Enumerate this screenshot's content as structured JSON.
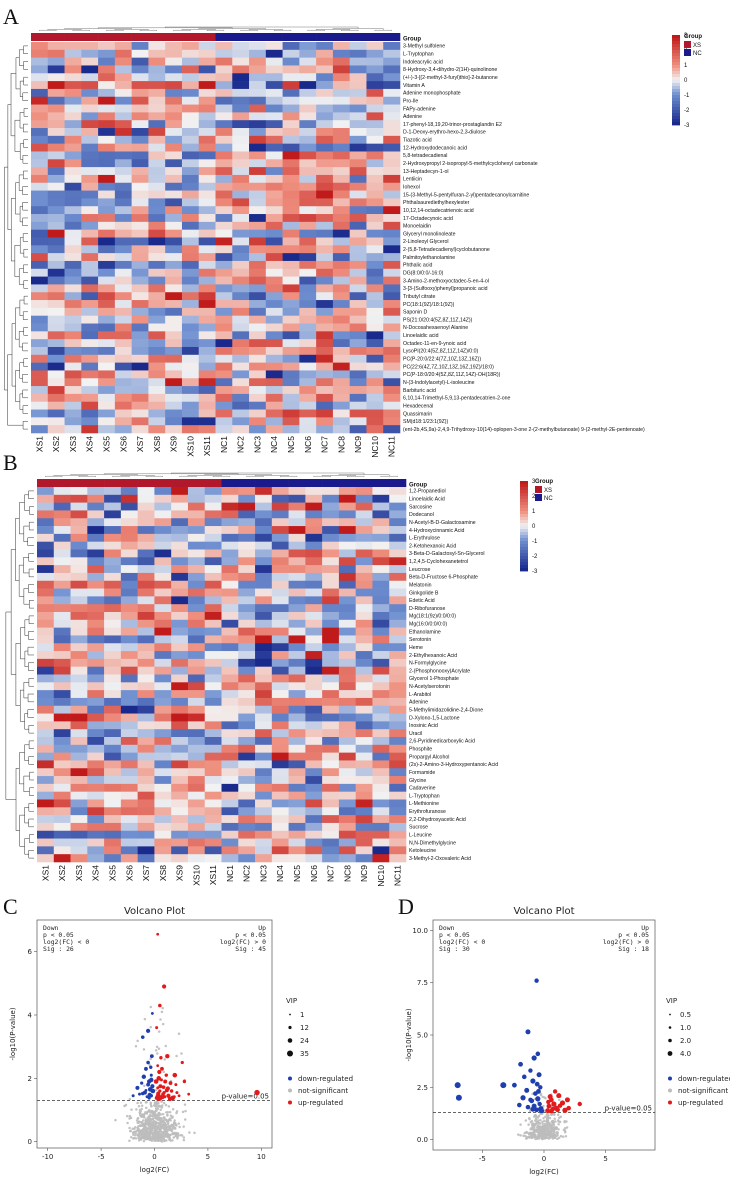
{
  "panels": {
    "a": "A",
    "b": "B",
    "c": "C",
    "d": "D"
  },
  "chart_data": [
    {
      "type": "heatmap",
      "panel": "A",
      "group_title": "Group",
      "groups": [
        {
          "name": "XS",
          "color": "#b2182b"
        },
        {
          "name": "NC",
          "color": "#1a1a8c"
        }
      ],
      "columns": [
        "XS1",
        "XS2",
        "XS3",
        "XS4",
        "XS5",
        "XS6",
        "XS7",
        "XS8",
        "XS9",
        "XS10",
        "XS11",
        "NC1",
        "NC2",
        "NC3",
        "NC4",
        "NC5",
        "NC6",
        "NC7",
        "NC8",
        "NC9",
        "NC10",
        "NC11"
      ],
      "rows": [
        "3-Methyl sulfolene",
        "L-Tryptophan",
        "Indoleacrylic acid",
        "8-Hydroxy-3,4-dihydro-2(1H)-quinolinone",
        "(+/-)-3-[(2-methyl-3-furyl)thio]-2-butanone",
        "Vitamin A",
        "Adenine monophosphate",
        "Pro-Ile",
        "FAPy-adenine",
        "Adenine",
        "17-phenyl-18,19,20-trinor-prostaglandin E2",
        "D-1-Deoxy-erythro-hexo-2,3-diulose",
        "Tiazotic acid",
        "12-Hydroxydodecanoic acid",
        "5,8-tetradecadienal",
        "2-Hydroxypropyl 2-isopropyl-5-methylcyclohexyl carbonate",
        "13-Heptadecyn-1-ol",
        "Lentiicin",
        "Iohexol",
        "15-(3-Methyl-5-pentylfuran-2-yl)pentadecanoylcarnitine",
        "Phthalsaurediethylhexylester",
        "10,12,14-octadecatrienoic acid",
        "17-Octadecynoic acid",
        "Monoelaidin",
        "Glyceryl monolinoleate",
        "2-Linoleoyl Glycerol",
        "2-(5,8-Tetradecadienyl)cyclobutanone",
        "Palmitoylethanolamine",
        "Phthalic acid",
        "DG(8:0/0:0/-16:0)",
        "3-Amino-2-methoxyoctadec-5-en-4-ol",
        "3-[3-(Sulfooxy)phenyl]propanoic acid",
        "Tributyl citrate",
        "PC(18:1(9Z)/18:1(9Z))",
        "Saponin D",
        "PS(21:0/20:4(5Z,8Z,11Z,14Z))",
        "N-Docosahexaenoyl Alanine",
        "Linoelaidic acid",
        "Octadec-11-en-9-ynoic acid",
        "LysoPI(20:4(5Z,8Z,11Z,14Z)/0:0)",
        "PC(P-20:0/22:4(7Z,10Z,13Z,16Z))",
        "PC(22:6(4Z,7Z,10Z,13Z,16Z,19Z)/18:0)",
        "PC(P-18:0/20:4(5Z,8Z,11Z,14Z)-OH(18R))",
        "N-(3-Indolylacetyl)-L-isoleucine",
        "Barbituric acid",
        "6,10,14-Trimethyl-5,9,13-pentadecatrien-2-one",
        "Hexadecenal",
        "Quassimarin",
        "SM(d18:1/23:1(9Z))",
        "(ent-2b,4S,9a)-2,4,9-Trihydroxy-10(14)-oplopen-3-one 2-(2-methylbutanoate) 9-(2-methyl-2E-pentenoate)"
      ],
      "scale": {
        "min": -3,
        "max": 3,
        "ticks": [
          "3",
          "2",
          "1",
          "0",
          "-1",
          "-2",
          "-3"
        ]
      }
    },
    {
      "type": "heatmap",
      "panel": "B",
      "group_title": "Group",
      "groups": [
        {
          "name": "XS",
          "color": "#b2182b"
        },
        {
          "name": "NC",
          "color": "#1a1a8c"
        }
      ],
      "columns": [
        "XS1",
        "XS2",
        "XS3",
        "XS4",
        "XS5",
        "XS6",
        "XS7",
        "XS8",
        "XS9",
        "XS10",
        "XS11",
        "NC1",
        "NC2",
        "NC3",
        "NC4",
        "NC5",
        "NC6",
        "NC7",
        "NC8",
        "NC9",
        "NC10",
        "NC11"
      ],
      "rows": [
        "1,2-Propanediol",
        "Linoelaidic Acid",
        "Sarcosine",
        "Dodecanol",
        "N-Acetyl-B-D-Galactosamine",
        "4-Hydroxycinnamic Acid",
        "L-Erythrulose",
        "2-Ketohexanoic Acid",
        "3-Beta-D-Galactosyl-Sn-Glycerol",
        "1,2,4,5-Cyclohexanetetrol",
        "Leucrose",
        "Beta-D-Fructose 6-Phosphate",
        "Melatonin",
        "Ginkgolide B",
        "Edetic Acid",
        "D-Ribofuranose",
        "Mg(18:1(9z)/0:0/0:0)",
        "Mg(16:0/0:0/0:0)",
        "Ethanolamine",
        "Serotonin",
        "Heme",
        "2-Ethylhexanoic Acid",
        "N-Formylglycine",
        "2-(Phosphonooxy)Acrylate",
        "Glycerol 1-Phosphate",
        "N-Acetylserotonin",
        "L-Arabitol",
        "Adenine",
        "5-Methylimidazolidine-2,4-Dione",
        "D-Xylono-1,5-Lactone",
        "Inosinic Acid",
        "Uracil",
        "2,6-Pyridinedicarboxylic Acid",
        "Phosphite",
        "Propargyl Alcohol",
        "(2s)-2-Amino-3-Hydroxypentanoic Acid",
        "Formamide",
        "Glycine",
        "Cadaverine",
        "L-Tryptophan",
        "L-Methionine",
        "Erythrofuranose",
        "2,2-Dihydroxyacetic Acid",
        "Sucrose",
        "L-Leucine",
        "N,N-Dimethylglycine",
        "Ketoleucine",
        "3-Methyl-2-Oxovaleric Acid"
      ],
      "scale": {
        "min": -3,
        "max": 3,
        "ticks": [
          "3",
          "2",
          "1",
          "0",
          "-1",
          "-2",
          "-3"
        ]
      }
    },
    {
      "type": "scatter",
      "panel": "C",
      "title": "Volcano Plot",
      "xlabel": "log2(FC)",
      "ylabel": "-log10(P-value)",
      "xlim": [
        -11,
        11
      ],
      "ylim": [
        -0.2,
        7
      ],
      "xticks": [
        -10,
        -5,
        0,
        5,
        10
      ],
      "yticks": [
        0,
        2,
        4,
        6
      ],
      "threshold": 1.3,
      "threshold_label": "p-value=0.05",
      "down_box": [
        "Down",
        "p < 0.05",
        "log2(FC) < 0",
        "Sig : 26"
      ],
      "up_box": [
        "Up",
        "p < 0.05",
        "log2(FC) > 0",
        "Sig : 45"
      ],
      "size_legend_title": "VIP",
      "size_legend": [
        "1",
        "12",
        "24",
        "35"
      ],
      "color_legend": [
        {
          "label": "down-regulated",
          "color": "#1f3fae"
        },
        {
          "label": "not-significant",
          "color": "#bdbdbd"
        },
        {
          "label": "up-regulated",
          "color": "#e31a1c"
        }
      ],
      "down_points": [
        [
          -0.2,
          4.05
        ],
        [
          -0.6,
          3.5
        ],
        [
          -1.1,
          3.3
        ],
        [
          -0.3,
          2.1
        ],
        [
          -0.5,
          1.9
        ],
        [
          -0.8,
          2.3
        ],
        [
          -1.2,
          1.85
        ],
        [
          -0.4,
          1.65
        ],
        [
          -0.9,
          1.55
        ],
        [
          -0.3,
          1.45
        ],
        [
          -0.7,
          1.42
        ],
        [
          -0.2,
          1.75
        ],
        [
          -0.6,
          2.5
        ],
        [
          -1.4,
          1.5
        ],
        [
          -1.0,
          2.05
        ],
        [
          -0.25,
          2.7
        ],
        [
          -0.5,
          1.38
        ],
        [
          -0.15,
          1.6
        ],
        [
          -1.6,
          1.7
        ],
        [
          -0.35,
          2.35
        ],
        [
          -0.8,
          1.62
        ],
        [
          -0.45,
          1.48
        ],
        [
          -1.1,
          1.52
        ],
        [
          -2.0,
          1.45
        ],
        [
          -0.3,
          1.95
        ],
        [
          -0.6,
          1.8
        ]
      ],
      "up_points": [
        [
          0.3,
          6.55
        ],
        [
          0.9,
          4.9
        ],
        [
          0.5,
          4.3
        ],
        [
          0.2,
          3.6
        ],
        [
          1.2,
          2.7
        ],
        [
          0.7,
          2.3
        ],
        [
          2.6,
          2.5
        ],
        [
          0.4,
          2.0
        ],
        [
          1.0,
          1.9
        ],
        [
          1.6,
          1.6
        ],
        [
          0.3,
          1.7
        ],
        [
          1.3,
          1.45
        ],
        [
          0.8,
          1.5
        ],
        [
          2.0,
          1.8
        ],
        [
          0.6,
          1.4
        ],
        [
          9.6,
          1.55
        ],
        [
          0.5,
          1.6
        ],
        [
          1.9,
          2.1
        ],
        [
          0.35,
          1.52
        ],
        [
          1.1,
          2.1
        ],
        [
          2.3,
          1.45
        ],
        [
          0.45,
          2.2
        ],
        [
          0.25,
          1.42
        ],
        [
          0.65,
          1.95
        ],
        [
          1.45,
          1.35
        ],
        [
          0.2,
          1.38
        ],
        [
          0.9,
          1.55
        ],
        [
          1.7,
          1.38
        ],
        [
          0.55,
          1.75
        ],
        [
          2.8,
          1.9
        ],
        [
          0.3,
          2.4
        ],
        [
          1.25,
          1.68
        ],
        [
          0.75,
          1.4
        ],
        [
          2.1,
          1.55
        ],
        [
          0.4,
          1.35
        ],
        [
          1.5,
          1.85
        ],
        [
          0.95,
          1.42
        ],
        [
          0.15,
          1.9
        ],
        [
          1.15,
          1.62
        ],
        [
          0.6,
          2.65
        ],
        [
          3.2,
          1.5
        ],
        [
          0.35,
          1.48
        ],
        [
          0.85,
          1.72
        ],
        [
          1.85,
          1.42
        ],
        [
          0.5,
          1.36
        ]
      ],
      "notsig_summary": "grey cloud centred near log2(FC)=0, -log10(P)<1.3"
    },
    {
      "type": "scatter",
      "panel": "D",
      "title": "Volcano Plot",
      "xlabel": "log2(FC)",
      "ylabel": "-log10(P-value)",
      "xlim": [
        -9,
        9
      ],
      "ylim": [
        -0.5,
        10.5
      ],
      "xticks": [
        -5,
        0,
        5
      ],
      "yticks": [
        0.0,
        2.5,
        5.0,
        7.5,
        10.0
      ],
      "threshold": 1.3,
      "threshold_label": "p-value=0.05",
      "down_box": [
        "Down",
        "p < 0.05",
        "log2(FC) < 0",
        "Sig : 30"
      ],
      "up_box": [
        "Up",
        "p < 0.05",
        "log2(FC) > 0",
        "Sig : 18"
      ],
      "size_legend_title": "VIP",
      "size_legend": [
        "0.5",
        "1.0",
        "2.0",
        "4.0"
      ],
      "color_legend": [
        {
          "label": "down-regulated",
          "color": "#1f3fae"
        },
        {
          "label": "not-significant",
          "color": "#bdbdbd"
        },
        {
          "label": "up-regulated",
          "color": "#e31a1c"
        }
      ],
      "down_points": [
        [
          -0.6,
          7.6
        ],
        [
          -1.3,
          5.15
        ],
        [
          -0.5,
          4.1
        ],
        [
          -0.8,
          3.9
        ],
        [
          -1.9,
          3.6
        ],
        [
          -1.1,
          3.3
        ],
        [
          -0.4,
          3.1
        ],
        [
          -1.6,
          3.0
        ],
        [
          -0.9,
          2.8
        ],
        [
          -2.4,
          2.6
        ],
        [
          -0.3,
          2.5
        ],
        [
          -1.4,
          2.35
        ],
        [
          -0.7,
          2.2
        ],
        [
          -0.5,
          1.95
        ],
        [
          -1.0,
          1.85
        ],
        [
          -0.35,
          1.7
        ],
        [
          -0.8,
          1.6
        ],
        [
          -1.3,
          1.55
        ],
        [
          -0.25,
          1.48
        ],
        [
          -0.6,
          1.42
        ],
        [
          -7.0,
          2.6
        ],
        [
          -6.9,
          2.0
        ],
        [
          -3.3,
          2.6
        ],
        [
          -1.7,
          2.0
        ],
        [
          -0.45,
          2.3
        ],
        [
          -1.1,
          1.9
        ],
        [
          -0.9,
          1.45
        ],
        [
          -2.0,
          1.65
        ],
        [
          -0.2,
          1.38
        ],
        [
          -0.55,
          2.65
        ]
      ],
      "up_points": [
        [
          0.9,
          2.3
        ],
        [
          1.2,
          2.1
        ],
        [
          0.6,
          1.9
        ],
        [
          1.5,
          1.75
        ],
        [
          0.4,
          1.6
        ],
        [
          2.9,
          1.7
        ],
        [
          1.0,
          1.5
        ],
        [
          0.7,
          1.45
        ],
        [
          1.7,
          1.4
        ],
        [
          0.3,
          1.38
        ],
        [
          1.3,
          1.62
        ],
        [
          0.5,
          2.05
        ],
        [
          2.0,
          1.5
        ],
        [
          0.8,
          1.7
        ],
        [
          1.1,
          1.42
        ],
        [
          0.35,
          1.8
        ],
        [
          1.9,
          1.9
        ],
        [
          0.6,
          1.36
        ]
      ],
      "notsig_summary": "grey cloud centred near log2(FC)=0, -log10(P)<1.3"
    }
  ]
}
